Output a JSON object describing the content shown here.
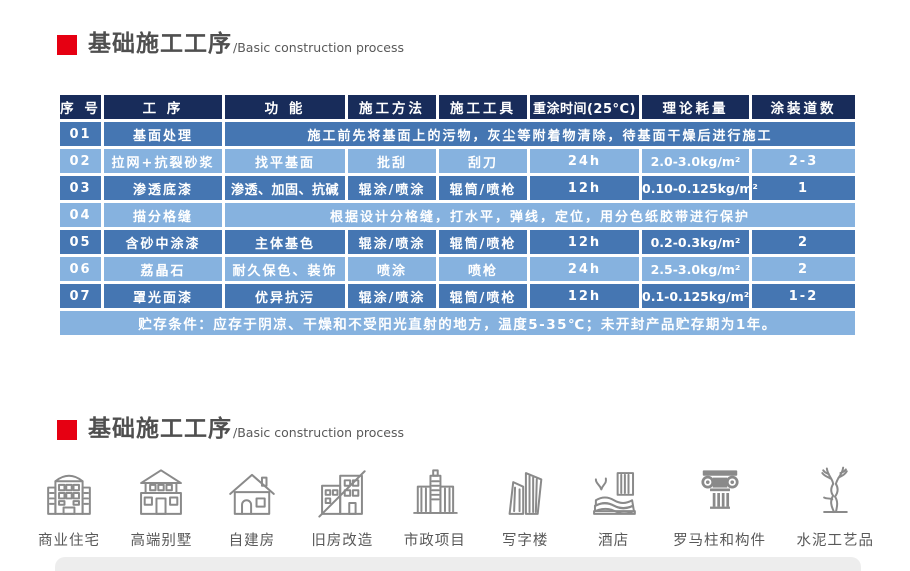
{
  "colors": {
    "accent_red": "#e60012",
    "header_bg": "#182c5a",
    "row_medium": "#4576b2",
    "row_light": "#86b2df"
  },
  "section1": {
    "title_cn": "基础施工工序",
    "title_en": "/Basic construction process"
  },
  "table": {
    "headers": [
      "序 号",
      "工 序",
      "功 能",
      "施工方法",
      "施工工具",
      "重涂时间(25°C)",
      "理论耗量",
      "涂装道数"
    ],
    "rows": [
      {
        "shade": "medium",
        "cells": [
          {
            "t": "01"
          },
          {
            "t": "基面处理"
          },
          {
            "t": "施工前先将基面上的污物，灰尘等附着物清除，待基面干燥后进行施工",
            "span": 6
          }
        ]
      },
      {
        "shade": "light",
        "cells": [
          {
            "t": "02"
          },
          {
            "t": "拉网+抗裂砂浆"
          },
          {
            "t": "找平基面"
          },
          {
            "t": "批刮"
          },
          {
            "t": "刮刀"
          },
          {
            "t": "24h"
          },
          {
            "t": "2.0-3.0kg/m²"
          },
          {
            "t": "2-3"
          }
        ]
      },
      {
        "shade": "medium",
        "cells": [
          {
            "t": "03"
          },
          {
            "t": "渗透底漆"
          },
          {
            "t": "渗透、加固、抗碱"
          },
          {
            "t": "辊涂/喷涂"
          },
          {
            "t": "辊筒/喷枪"
          },
          {
            "t": "12h"
          },
          {
            "t": "0.10-0.125kg/m²"
          },
          {
            "t": "1"
          }
        ]
      },
      {
        "shade": "light",
        "cells": [
          {
            "t": "04"
          },
          {
            "t": "描分格缝"
          },
          {
            "t": "根据设计分格缝，打水平，弹线，定位，用分色纸胶带进行保护",
            "span": 6
          }
        ]
      },
      {
        "shade": "medium",
        "cells": [
          {
            "t": "05"
          },
          {
            "t": "含砂中涂漆"
          },
          {
            "t": "主体基色"
          },
          {
            "t": "辊涂/喷涂"
          },
          {
            "t": "辊筒/喷枪"
          },
          {
            "t": "12h"
          },
          {
            "t": "0.2-0.3kg/m²"
          },
          {
            "t": "2"
          }
        ]
      },
      {
        "shade": "light",
        "cells": [
          {
            "t": "06"
          },
          {
            "t": "荔晶石"
          },
          {
            "t": "耐久保色、装饰"
          },
          {
            "t": "喷涂"
          },
          {
            "t": "喷枪"
          },
          {
            "t": "24h"
          },
          {
            "t": "2.5-3.0kg/m²"
          },
          {
            "t": "2"
          }
        ]
      },
      {
        "shade": "medium",
        "cells": [
          {
            "t": "07"
          },
          {
            "t": "罩光面漆"
          },
          {
            "t": "优异抗污"
          },
          {
            "t": "辊涂/喷涂"
          },
          {
            "t": "辊筒/喷枪"
          },
          {
            "t": "12h"
          },
          {
            "t": "0.1-0.125kg/m²"
          },
          {
            "t": "1-2"
          }
        ]
      }
    ],
    "storage_note": "贮存条件：应存于阴凉、干燥和不受阳光直射的地方，温度5-35℃；未开封产品贮存期为1年。"
  },
  "section2": {
    "title_cn": "基础施工工序",
    "title_en": "/Basic construction process"
  },
  "applications": [
    {
      "label": "商业住宅",
      "icon": "commercial-residence-icon"
    },
    {
      "label": "高端别墅",
      "icon": "villa-icon"
    },
    {
      "label": "自建房",
      "icon": "self-built-house-icon"
    },
    {
      "label": "旧房改造",
      "icon": "renovation-icon"
    },
    {
      "label": "市政项目",
      "icon": "municipal-project-icon"
    },
    {
      "label": "写字楼",
      "icon": "office-building-icon"
    },
    {
      "label": "酒店",
      "icon": "hotel-icon"
    },
    {
      "label": "罗马柱和构件",
      "icon": "roman-column-icon"
    },
    {
      "label": "水泥工艺品",
      "icon": "cement-craft-icon"
    }
  ]
}
